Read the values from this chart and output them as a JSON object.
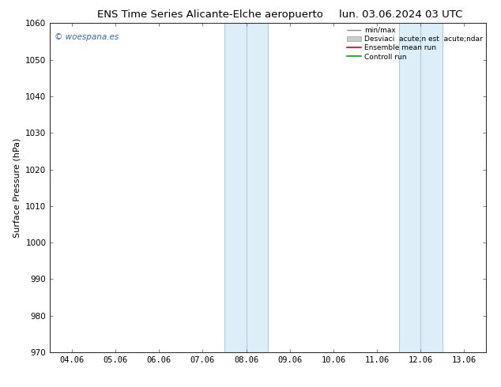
{
  "title_left": "ENS Time Series Alicante-Elche aeropuerto",
  "title_right": "lun. 03.06.2024 03 UTC",
  "ylabel": "Surface Pressure (hPa)",
  "ylim": [
    970,
    1060
  ],
  "yticks": [
    970,
    980,
    990,
    1000,
    1010,
    1020,
    1030,
    1040,
    1050,
    1060
  ],
  "xtick_labels": [
    "04.06",
    "05.06",
    "06.06",
    "07.06",
    "08.06",
    "09.06",
    "10.06",
    "11.06",
    "12.06",
    "13.06"
  ],
  "xtick_positions": [
    0,
    1,
    2,
    3,
    4,
    5,
    6,
    7,
    8,
    9
  ],
  "xlim": [
    -0.5,
    9.5
  ],
  "shade_bands": [
    {
      "x_start": 3.5,
      "x_end": 4.5,
      "x_mid": 4.0
    },
    {
      "x_start": 7.5,
      "x_end": 8.5,
      "x_mid": 8.0
    }
  ],
  "shade_color": "#ddeef8",
  "shade_edge_color": "#aaccdd",
  "watermark": "© woespana.es",
  "watermark_color": "#3366bb",
  "background_color": "#ffffff",
  "title_fontsize": 9.5,
  "axis_label_fontsize": 8,
  "tick_fontsize": 7.5
}
